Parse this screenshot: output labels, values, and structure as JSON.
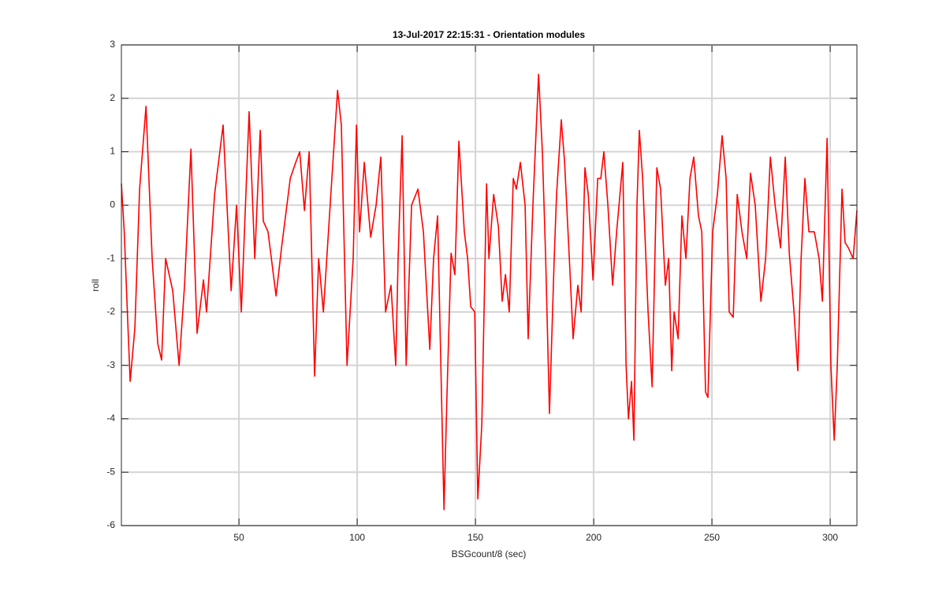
{
  "chart_data": {
    "type": "line",
    "title": "13-Jul-2017 22:15:31 - Orientation modules",
    "x_label": "BSGcount/8 (sec)",
    "y_label": "roll",
    "xlim": [
      0.3,
      311.3
    ],
    "ylim": [
      -6,
      3
    ],
    "xticks": [
      50,
      100,
      150,
      200,
      250,
      300
    ],
    "yticks": [
      -6,
      -5,
      -4,
      -3,
      -2,
      -1,
      0,
      1,
      2,
      3
    ],
    "grid": true,
    "x": [
      0.3,
      1.5,
      3,
      4,
      6,
      8,
      10.7,
      13.3,
      15.7,
      17.3,
      19,
      22,
      24.7,
      27,
      29.7,
      32.3,
      35,
      36.3,
      39.7,
      43.3,
      46.7,
      49,
      51,
      54.3,
      56.7,
      59,
      60.3,
      62.3,
      65.7,
      68,
      71.7,
      74,
      75.7,
      77.7,
      79.7,
      82,
      83.7,
      85.7,
      89,
      91.7,
      93.3,
      95.7,
      98.3,
      99.7,
      101,
      103,
      105.7,
      108,
      110,
      112,
      114.3,
      116.3,
      117.3,
      119,
      120.7,
      123,
      125.7,
      128,
      130.7,
      132.3,
      134,
      136.7,
      138,
      139.7,
      141.3,
      143,
      145.3,
      146.7,
      148,
      149.7,
      151,
      152.7,
      154.7,
      155.7,
      157.7,
      159.7,
      161.3,
      162.7,
      164.3,
      166,
      167.3,
      169,
      171,
      172.3,
      174.3,
      176.7,
      178.3,
      179.7,
      181.3,
      183.3,
      184.3,
      186.3,
      187.7,
      189.7,
      191.3,
      193.3,
      194.7,
      196.3,
      197.7,
      199.7,
      201.7,
      203,
      204.3,
      206,
      208,
      209.7,
      212.3,
      213.7,
      214.7,
      216,
      217,
      218.3,
      219.3,
      220.7,
      223,
      224.7,
      226.7,
      228.3,
      230.3,
      231.7,
      233,
      234,
      235.7,
      237.3,
      239,
      240.7,
      242.3,
      244.3,
      245.7,
      247.3,
      248.3,
      250.3,
      252.3,
      254.3,
      256,
      257.3,
      259,
      260.7,
      262.7,
      264.7,
      266.3,
      268.3,
      270.7,
      272.7,
      274.7,
      276.7,
      279,
      281,
      282.7,
      284.7,
      286.3,
      287.7,
      289.3,
      291,
      293.3,
      295.3,
      296.7,
      298.7,
      300.3,
      301.7,
      303,
      305,
      306.3,
      307.7,
      309.7,
      311.3
    ],
    "series": [
      {
        "name": "roll",
        "color": "#ff0000",
        "values": [
          0.4,
          -0.5,
          -2.2,
          -3.3,
          -2.3,
          0.3,
          1.85,
          -1.0,
          -2.6,
          -2.9,
          -1.0,
          -1.6,
          -3.0,
          -1.5,
          1.05,
          -2.4,
          -1.4,
          -2.0,
          0.2,
          1.5,
          -1.6,
          0.0,
          -2.0,
          1.75,
          -1.0,
          1.4,
          -0.3,
          -0.5,
          -1.7,
          -0.8,
          0.5,
          0.8,
          1.0,
          -0.1,
          1.0,
          -3.2,
          -1.0,
          -2.0,
          0.3,
          2.15,
          1.5,
          -3.0,
          -1.0,
          1.5,
          -0.5,
          0.8,
          -0.6,
          0.0,
          0.9,
          -2.0,
          -1.5,
          -3.0,
          -1.0,
          1.3,
          -3.0,
          0.0,
          0.3,
          -0.5,
          -2.7,
          -1.0,
          -0.2,
          -5.7,
          -3.5,
          -0.9,
          -1.3,
          1.2,
          -0.5,
          -1.0,
          -1.9,
          -2.0,
          -5.5,
          -4.1,
          0.4,
          -1.0,
          0.2,
          -0.4,
          -1.8,
          -1.3,
          -2.0,
          0.5,
          0.3,
          0.8,
          0.0,
          -2.5,
          0.0,
          2.45,
          1.0,
          -1.0,
          -3.9,
          -1.0,
          0.2,
          1.6,
          0.8,
          -1.0,
          -2.5,
          -1.5,
          -2.0,
          0.7,
          0.2,
          -1.4,
          0.5,
          0.5,
          1.0,
          0.0,
          -1.5,
          -0.5,
          0.8,
          -3.0,
          -4.0,
          -3.3,
          -4.4,
          0.0,
          1.4,
          0.5,
          -2.0,
          -3.4,
          0.7,
          0.3,
          -1.5,
          -1.0,
          -3.1,
          -2.0,
          -2.5,
          -0.2,
          -1.0,
          0.5,
          0.9,
          -0.2,
          -0.5,
          -3.5,
          -3.6,
          -0.5,
          0.2,
          1.3,
          0.5,
          -2.0,
          -2.1,
          0.2,
          -0.5,
          -1.0,
          0.6,
          0.0,
          -1.8,
          -1.0,
          0.9,
          0.0,
          -0.8,
          0.9,
          -0.9,
          -2.0,
          -3.1,
          -1.0,
          0.5,
          -0.5,
          -0.5,
          -1.0,
          -1.8,
          1.25,
          -3.0,
          -4.4,
          -3.0,
          0.3,
          -0.7,
          -0.8,
          -1.0,
          -0.1
        ]
      }
    ]
  }
}
